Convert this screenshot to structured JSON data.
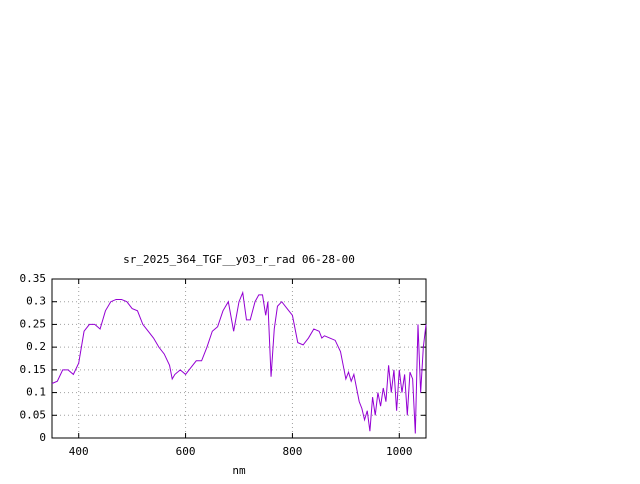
{
  "chart_data": {
    "type": "line",
    "title": "sr_2025_364_TGF__y03_r_rad 06-28-00",
    "x_label": "nm",
    "x": [
      350,
      360,
      370,
      380,
      390,
      400,
      410,
      420,
      430,
      440,
      450,
      460,
      470,
      480,
      490,
      500,
      510,
      520,
      530,
      540,
      550,
      560,
      570,
      575,
      580,
      590,
      600,
      610,
      620,
      630,
      640,
      650,
      660,
      670,
      680,
      690,
      700,
      707,
      714,
      721,
      730,
      737,
      744,
      750,
      754,
      760,
      766,
      772,
      780,
      790,
      800,
      810,
      820,
      830,
      840,
      850,
      855,
      860,
      870,
      880,
      890,
      895,
      900,
      905,
      910,
      915,
      920,
      925,
      930,
      935,
      940,
      945,
      950,
      955,
      960,
      965,
      970,
      975,
      980,
      985,
      990,
      995,
      1000,
      1005,
      1010,
      1015,
      1020,
      1025,
      1030,
      1035,
      1040,
      1045,
      1050
    ],
    "series": [
      {
        "name": "sr_2025_364_TGF__y03_r_rad",
        "color": "#9400d3",
        "values": [
          0.12,
          0.125,
          0.15,
          0.15,
          0.14,
          0.165,
          0.235,
          0.25,
          0.25,
          0.24,
          0.28,
          0.3,
          0.305,
          0.305,
          0.3,
          0.285,
          0.28,
          0.25,
          0.235,
          0.22,
          0.2,
          0.185,
          0.16,
          0.13,
          0.14,
          0.15,
          0.14,
          0.155,
          0.17,
          0.17,
          0.2,
          0.235,
          0.245,
          0.28,
          0.3,
          0.235,
          0.3,
          0.32,
          0.26,
          0.26,
          0.3,
          0.315,
          0.315,
          0.27,
          0.3,
          0.135,
          0.24,
          0.29,
          0.3,
          0.285,
          0.27,
          0.21,
          0.205,
          0.22,
          0.24,
          0.235,
          0.22,
          0.225,
          0.22,
          0.215,
          0.19,
          0.16,
          0.13,
          0.145,
          0.125,
          0.14,
          0.11,
          0.08,
          0.065,
          0.04,
          0.06,
          0.015,
          0.09,
          0.05,
          0.1,
          0.07,
          0.11,
          0.08,
          0.16,
          0.1,
          0.15,
          0.06,
          0.15,
          0.1,
          0.14,
          0.05,
          0.145,
          0.13,
          0.01,
          0.25,
          0.1,
          0.2,
          0.25
        ]
      }
    ],
    "xlim": [
      350,
      1050
    ],
    "xticks": [
      400,
      600,
      800,
      1000
    ],
    "ylim": [
      0,
      0.35
    ],
    "yticks": [
      0,
      0.05,
      0.1,
      0.15,
      0.2,
      0.25,
      0.3,
      0.35
    ],
    "grid": true
  }
}
